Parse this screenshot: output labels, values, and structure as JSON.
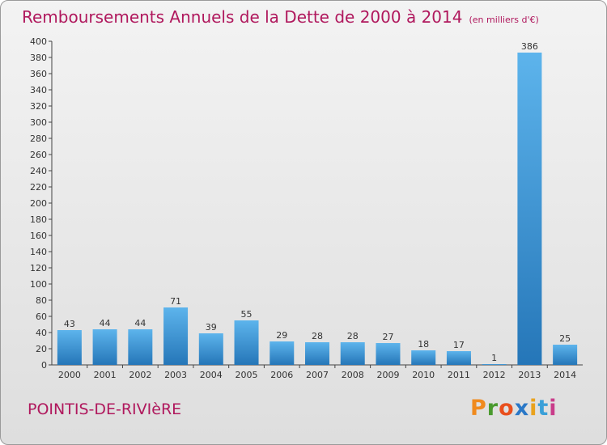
{
  "chart_data": {
    "type": "bar",
    "title": "Remboursements Annuels de la Dette de 2000 à 2014",
    "subtitle": "(en milliers d'€)",
    "categories": [
      "2000",
      "2001",
      "2002",
      "2003",
      "2004",
      "2005",
      "2006",
      "2007",
      "2008",
      "2009",
      "2010",
      "2011",
      "2012",
      "2013",
      "2014"
    ],
    "values": [
      43,
      44,
      44,
      71,
      39,
      55,
      29,
      28,
      28,
      27,
      18,
      17,
      1,
      386,
      25
    ],
    "ylim": [
      0,
      400
    ],
    "ytick_step": 20,
    "grid": false,
    "bar_color": "#3a93d4"
  },
  "footer": {
    "commune": "POINTIS-DE-RIVIèRE",
    "logo_letters": [
      "P",
      "r",
      "o",
      "x",
      "i",
      "t",
      "i"
    ],
    "logo_colors": [
      "#f08a1d",
      "#4a9a2e",
      "#e94f1d",
      "#2a78c7",
      "#e9a21d",
      "#3aa0d8",
      "#c93c8a"
    ]
  },
  "colors": {
    "title": "#b0185d",
    "axis": "#444444"
  }
}
